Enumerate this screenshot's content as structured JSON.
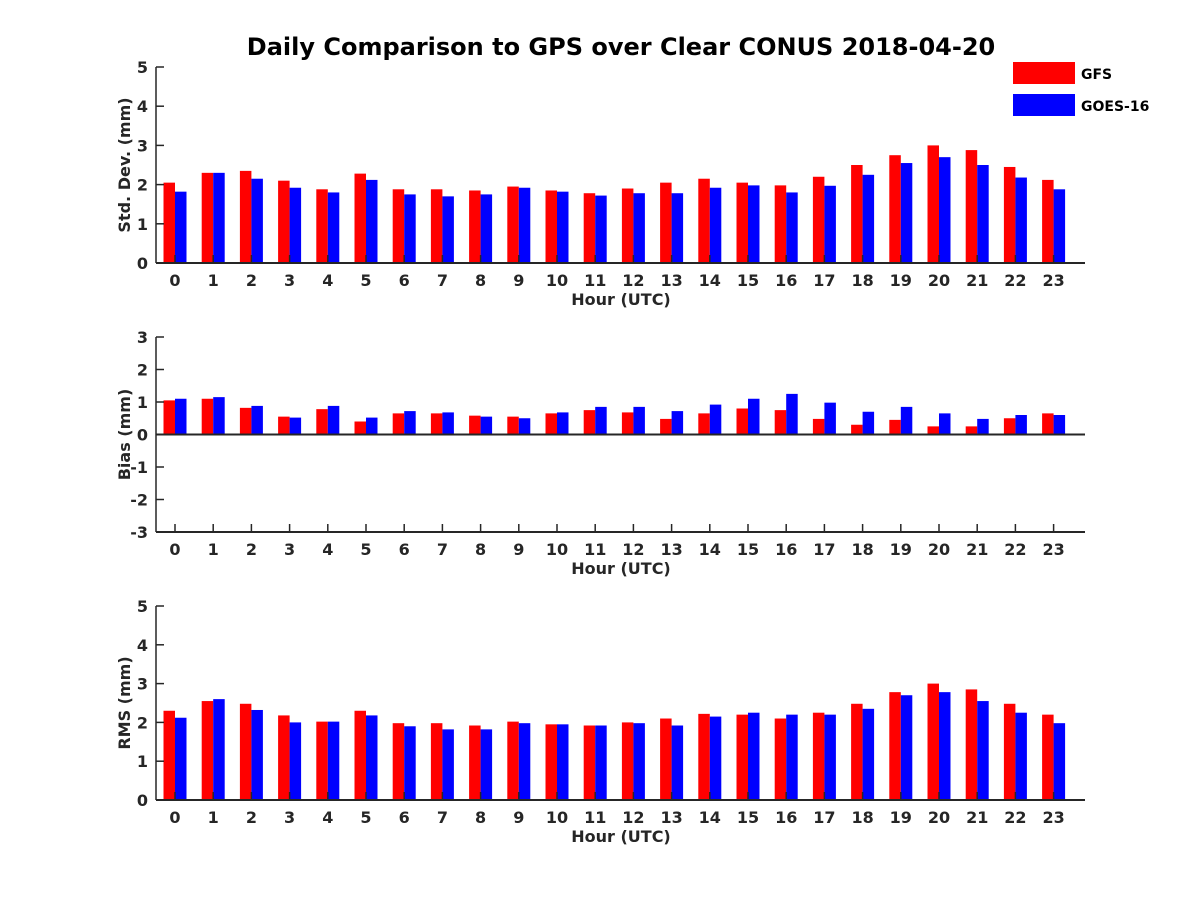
{
  "title": "Daily Comparison to GPS over Clear CONUS 2018-04-20",
  "colors": {
    "GFS": "#ff0000",
    "GOES-16": "#0000ff"
  },
  "legend": [
    "GFS",
    "GOES-16"
  ],
  "chart_data": [
    {
      "type": "bar",
      "name": "std-dev",
      "ylabel": "Std. Dev. (mm)",
      "xlabel": "Hour (UTC)",
      "ylim": [
        0,
        5
      ],
      "yticks": [
        "0",
        "1",
        "2",
        "3",
        "4",
        "5"
      ],
      "categories": [
        "0",
        "1",
        "2",
        "3",
        "4",
        "5",
        "6",
        "7",
        "8",
        "9",
        "10",
        "11",
        "12",
        "13",
        "14",
        "15",
        "16",
        "17",
        "18",
        "19",
        "20",
        "21",
        "22",
        "23"
      ],
      "series": [
        {
          "name": "GFS",
          "values": [
            2.05,
            2.3,
            2.35,
            2.1,
            1.88,
            2.28,
            1.88,
            1.88,
            1.85,
            1.95,
            1.85,
            1.78,
            1.9,
            2.05,
            2.15,
            2.05,
            1.98,
            2.2,
            2.5,
            2.75,
            3.0,
            2.88,
            2.45,
            2.12
          ]
        },
        {
          "name": "GOES-16",
          "values": [
            1.82,
            2.3,
            2.15,
            1.92,
            1.8,
            2.12,
            1.75,
            1.7,
            1.75,
            1.92,
            1.82,
            1.72,
            1.78,
            1.78,
            1.92,
            1.98,
            1.8,
            1.97,
            2.25,
            2.55,
            2.7,
            2.5,
            2.18,
            1.88
          ]
        }
      ]
    },
    {
      "type": "bar",
      "name": "bias",
      "ylabel": "Bias (mm)",
      "xlabel": "Hour (UTC)",
      "ylim": [
        -3,
        3
      ],
      "yticks": [
        "-3",
        "-2",
        "-1",
        "0",
        "1",
        "2",
        "3"
      ],
      "categories": [
        "0",
        "1",
        "2",
        "3",
        "4",
        "5",
        "6",
        "7",
        "8",
        "9",
        "10",
        "11",
        "12",
        "13",
        "14",
        "15",
        "16",
        "17",
        "18",
        "19",
        "20",
        "21",
        "22",
        "23"
      ],
      "series": [
        {
          "name": "GFS",
          "values": [
            1.05,
            1.1,
            0.82,
            0.55,
            0.78,
            0.4,
            0.65,
            0.65,
            0.58,
            0.55,
            0.65,
            0.75,
            0.68,
            0.48,
            0.65,
            0.8,
            0.75,
            0.48,
            0.3,
            0.45,
            0.25,
            0.25,
            0.5,
            0.65
          ]
        },
        {
          "name": "GOES-16",
          "values": [
            1.1,
            1.15,
            0.88,
            0.52,
            0.88,
            0.52,
            0.72,
            0.68,
            0.55,
            0.5,
            0.68,
            0.85,
            0.85,
            0.72,
            0.92,
            1.1,
            1.25,
            0.98,
            0.7,
            0.85,
            0.65,
            0.48,
            0.6,
            0.6
          ]
        }
      ]
    },
    {
      "type": "bar",
      "name": "rms",
      "ylabel": "RMS (mm)",
      "xlabel": "Hour (UTC)",
      "ylim": [
        0,
        5
      ],
      "yticks": [
        "0",
        "1",
        "2",
        "3",
        "4",
        "5"
      ],
      "categories": [
        "0",
        "1",
        "2",
        "3",
        "4",
        "5",
        "6",
        "7",
        "8",
        "9",
        "10",
        "11",
        "12",
        "13",
        "14",
        "15",
        "16",
        "17",
        "18",
        "19",
        "20",
        "21",
        "22",
        "23"
      ],
      "series": [
        {
          "name": "GFS",
          "values": [
            2.3,
            2.55,
            2.48,
            2.18,
            2.02,
            2.3,
            1.98,
            1.98,
            1.92,
            2.02,
            1.95,
            1.92,
            2.0,
            2.1,
            2.22,
            2.2,
            2.1,
            2.25,
            2.48,
            2.78,
            3.0,
            2.85,
            2.48,
            2.2
          ]
        },
        {
          "name": "GOES-16",
          "values": [
            2.12,
            2.6,
            2.32,
            2.0,
            2.02,
            2.18,
            1.9,
            1.82,
            1.82,
            1.98,
            1.95,
            1.92,
            1.98,
            1.92,
            2.15,
            2.25,
            2.2,
            2.2,
            2.35,
            2.7,
            2.78,
            2.55,
            2.25,
            1.98
          ]
        }
      ]
    }
  ]
}
